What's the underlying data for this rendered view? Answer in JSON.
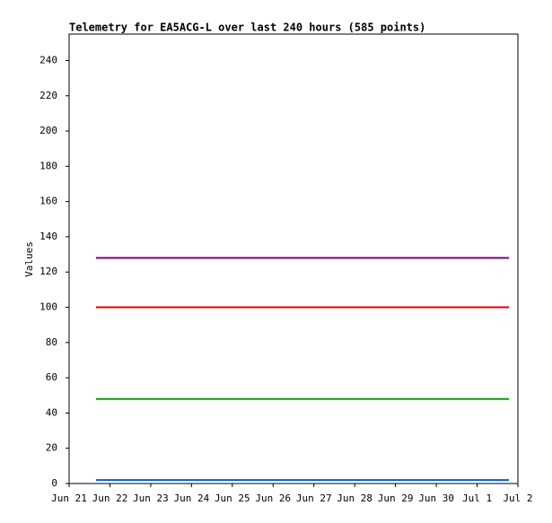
{
  "chart_data": {
    "type": "line",
    "title": "Telemetry for EA5ACG-L over last 240 hours (585 points)",
    "y_label": "Values",
    "x": [
      0.66,
      10.78
    ],
    "series": [
      {
        "color": "#800080",
        "values": [
          128,
          128
        ]
      },
      {
        "color": "#e00000",
        "values": [
          100,
          100
        ]
      },
      {
        "color": "#00a000",
        "values": [
          48,
          48
        ]
      },
      {
        "color": "#0060c0",
        "values": [
          2,
          2
        ]
      }
    ],
    "xlim": [
      0,
      11
    ],
    "xticks": [
      {
        "value": 0,
        "label": "Jun 21"
      },
      {
        "value": 1,
        "label": "Jun 22"
      },
      {
        "value": 2,
        "label": "Jun 23"
      },
      {
        "value": 3,
        "label": "Jun 24"
      },
      {
        "value": 4,
        "label": "Jun 25"
      },
      {
        "value": 5,
        "label": "Jun 26"
      },
      {
        "value": 6,
        "label": "Jun 27"
      },
      {
        "value": 7,
        "label": "Jun 28"
      },
      {
        "value": 8,
        "label": "Jun 29"
      },
      {
        "value": 9,
        "label": "Jun 30"
      },
      {
        "value": 10,
        "label": "Jul 1"
      },
      {
        "value": 11,
        "label": "Jul 2"
      }
    ],
    "ylim": [
      0,
      255
    ],
    "yticks": [
      0,
      20,
      40,
      60,
      80,
      100,
      120,
      140,
      160,
      180,
      200,
      220,
      240
    ],
    "grid": false
  }
}
